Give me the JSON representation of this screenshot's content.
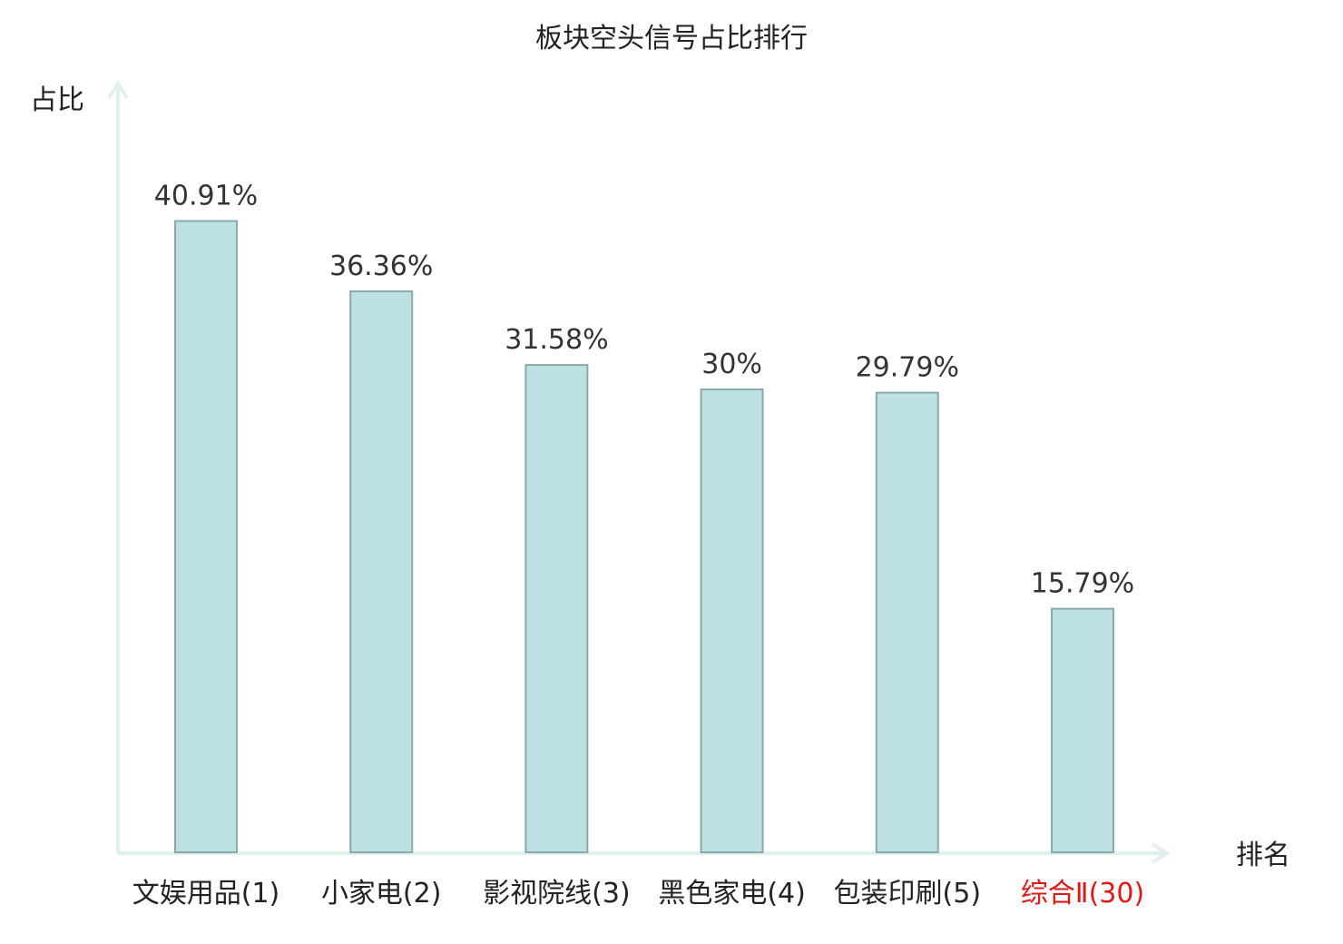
{
  "chart_data": {
    "type": "bar",
    "title": "板块空头信号占比排行",
    "ylabel": "占比",
    "xlabel": "排名",
    "categories": [
      "文娱用品(1)",
      "小家电(2)",
      "影视院线(3)",
      "黑色家电(4)",
      "包装印刷(5)",
      "综合Ⅱ(30)"
    ],
    "values": [
      40.91,
      36.36,
      31.58,
      30,
      29.79,
      15.79
    ],
    "value_labels": [
      "40.91%",
      "36.36%",
      "31.58%",
      "30%",
      "29.79%",
      "15.79%"
    ],
    "highlight_index": 5,
    "ylim": [
      0,
      50
    ],
    "grid": false,
    "legend": "none"
  },
  "colors": {
    "bar_fill": "#bde0e3",
    "bar_stroke": "#8aa9ab",
    "axis": "#dff1ef",
    "text": "#222222",
    "value_text": "#333333",
    "highlight": "#e01818"
  }
}
